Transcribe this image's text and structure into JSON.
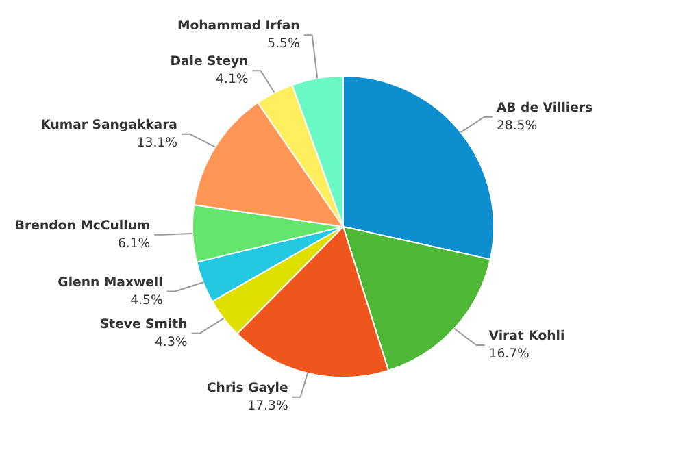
{
  "chart_data": {
    "type": "pie",
    "categories": [
      "AB de Villiers",
      "Virat Kohli",
      "Chris Gayle",
      "Steve Smith",
      "Glenn Maxwell",
      "Brendon McCullum",
      "Kumar Sangakkara",
      "Dale Steyn",
      "Mohammad Irfan"
    ],
    "values": [
      28.5,
      16.7,
      17.3,
      4.3,
      4.5,
      6.1,
      13.1,
      4.1,
      5.5
    ],
    "value_labels": [
      "28.5%",
      "16.7%",
      "17.3%",
      "4.3%",
      "4.5%",
      "6.1%",
      "13.1%",
      "4.1%",
      "5.5%"
    ],
    "colors": [
      "#0d8ecf",
      "#4fb736",
      "#ef561d",
      "#dfdf00",
      "#25c8e3",
      "#64e56c",
      "#ff9655",
      "#ffef5f",
      "#6af9c4"
    ]
  }
}
